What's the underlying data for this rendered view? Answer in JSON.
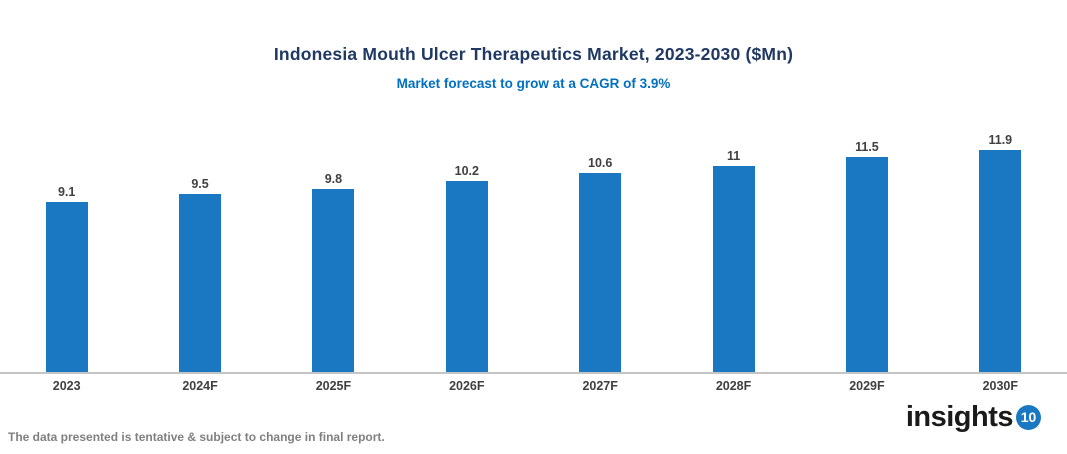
{
  "header": {
    "title": "Indonesia Mouth Ulcer Therapeutics Market, 2023-2030 ($Mn)",
    "subtitle": "Market forecast to grow at a CAGR of 3.9%"
  },
  "chart_data": {
    "type": "bar",
    "title": "Indonesia Mouth Ulcer Therapeutics Market, 2023-2030 ($Mn)",
    "subtitle": "Market forecast to grow at a CAGR of 3.9%",
    "categories": [
      "2023",
      "2024F",
      "2025F",
      "2026F",
      "2027F",
      "2028F",
      "2029F",
      "2030F"
    ],
    "values": [
      9.1,
      9.5,
      9.8,
      10.2,
      10.6,
      11,
      11.5,
      11.9
    ],
    "xlabel": "",
    "ylabel": "",
    "ylim": [
      0,
      12.75
    ],
    "grid": false,
    "legend_position": "none",
    "data_labels": true,
    "cagr_percent": 3.9
  },
  "footer": {
    "disclaimer": "The data presented is tentative & subject to change in final report."
  },
  "logo": {
    "text": "insights",
    "badge": "10"
  },
  "colors": {
    "bar": "#1A78C2",
    "title": "#1F3864",
    "subtitle": "#0070C0",
    "label": "#404040",
    "axis_line": "#C4C4C4",
    "footer_text": "#808080",
    "logo_text": "#1A1A1A",
    "logo_badge": "#1A78C2"
  }
}
